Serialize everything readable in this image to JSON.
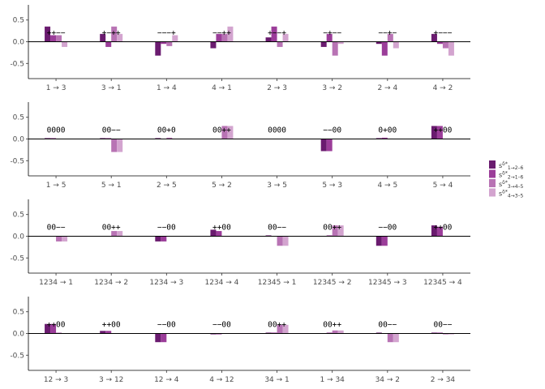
{
  "colors": [
    "#6a1b6f",
    "#9b3d99",
    "#b873b4",
    "#d3a4cf"
  ],
  "legend": [
    {
      "base": "s",
      "sup": "δ*",
      "sub": "1→2–6"
    },
    {
      "base": "s",
      "sup": "δ*",
      "sub": "2→1–6"
    },
    {
      "base": "s",
      "sup": "δ*",
      "sub": "3→4–5"
    },
    {
      "base": "s",
      "sup": "δ*",
      "sub": "4→3–5"
    }
  ],
  "chart_data": [
    {
      "type": "bar",
      "ylim": [
        -0.85,
        0.85
      ],
      "yticks": [
        "-0.5",
        "0.0",
        "0.5"
      ],
      "categories": [
        "1 → 3",
        "3 → 1",
        "1 → 4",
        "4 → 1",
        "2 → 3",
        "3 → 2",
        "2 → 4",
        "4 → 2"
      ],
      "annotations": [
        "++−−",
        "+−++",
        "−−−+",
        "−−++",
        "+−−+",
        "−+−−",
        "−−+−",
        "+−−−"
      ],
      "values": [
        [
          0.35,
          0.15,
          0.15,
          -0.12
        ],
        [
          0.18,
          -0.12,
          0.35,
          0.18
        ],
        [
          -0.32,
          -0.05,
          -0.1,
          0.15
        ],
        [
          -0.15,
          0.18,
          0.18,
          0.35
        ],
        [
          0.1,
          0.35,
          -0.12,
          0.18
        ],
        [
          -0.12,
          0.18,
          -0.32,
          -0.05
        ],
        [
          -0.05,
          -0.32,
          0.18,
          -0.15
        ],
        [
          0.18,
          -0.05,
          -0.15,
          -0.32
        ]
      ]
    },
    {
      "type": "bar",
      "ylim": [
        -0.85,
        0.85
      ],
      "yticks": [
        "-0.5",
        "0.0",
        "0.5"
      ],
      "categories": [
        "1 → 5",
        "5 → 1",
        "2 → 5",
        "5 → 2",
        "3 → 5",
        "5 → 3",
        "4 → 5",
        "5 → 4"
      ],
      "annotations": [
        "0000",
        "00−−",
        "00+0",
        "00++",
        "0000",
        "−−00",
        "0+00",
        "++00"
      ],
      "values": [
        [
          0.02,
          0.02,
          0.0,
          0.0
        ],
        [
          0.02,
          0.02,
          -0.3,
          -0.3
        ],
        [
          0.02,
          0.0,
          0.03,
          0.0
        ],
        [
          0.0,
          0.0,
          0.3,
          0.3
        ],
        [
          0.0,
          0.0,
          0.0,
          0.01
        ],
        [
          -0.28,
          -0.28,
          0.0,
          0.0
        ],
        [
          0.02,
          0.03,
          0.01,
          0.0
        ],
        [
          0.3,
          0.3,
          0.0,
          0.0
        ]
      ]
    },
    {
      "type": "bar",
      "ylim": [
        -0.85,
        0.85
      ],
      "yticks": [
        "-0.5",
        "0.0",
        "0.5"
      ],
      "categories": [
        "1234 → 1",
        "1234 → 2",
        "1234 → 3",
        "1234 → 4",
        "12345 → 1",
        "12345 → 2",
        "12345 → 3",
        "12345 → 4"
      ],
      "annotations": [
        "00−−",
        "00++",
        "−−00",
        "++00",
        "00−−",
        "00++",
        "−−00",
        "++00"
      ],
      "values": [
        [
          0.0,
          0.0,
          -0.12,
          -0.12
        ],
        [
          0.0,
          0.0,
          0.12,
          0.12
        ],
        [
          -0.12,
          -0.12,
          0.0,
          0.0
        ],
        [
          0.15,
          0.12,
          0.0,
          0.0
        ],
        [
          0.02,
          0.0,
          -0.22,
          -0.22
        ],
        [
          0.0,
          0.02,
          0.25,
          0.25
        ],
        [
          -0.22,
          -0.22,
          0.0,
          0.0
        ],
        [
          0.25,
          0.22,
          0.0,
          0.0
        ]
      ]
    },
    {
      "type": "bar",
      "ylim": [
        -0.85,
        0.85
      ],
      "yticks": [
        "-0.5",
        "0.0",
        "0.5"
      ],
      "categories": [
        "12 → 3",
        "3 → 12",
        "12 → 4",
        "4 → 12",
        "34 → 1",
        "1 → 34",
        "34 → 2",
        "2 → 34"
      ],
      "annotations": [
        "++00",
        "++00",
        "−−00",
        "−−00",
        "00++",
        "00++",
        "00−−",
        "00−−"
      ],
      "values": [
        [
          0.22,
          0.22,
          0.02,
          0.0
        ],
        [
          0.06,
          0.06,
          0.0,
          0.0
        ],
        [
          -0.2,
          -0.2,
          0.0,
          0.0
        ],
        [
          -0.02,
          -0.02,
          0.0,
          0.0
        ],
        [
          0.02,
          0.02,
          0.2,
          0.2
        ],
        [
          0.0,
          0.02,
          0.07,
          0.07
        ],
        [
          0.02,
          0.0,
          -0.2,
          -0.2
        ],
        [
          0.02,
          0.02,
          -0.02,
          -0.02
        ]
      ]
    }
  ]
}
